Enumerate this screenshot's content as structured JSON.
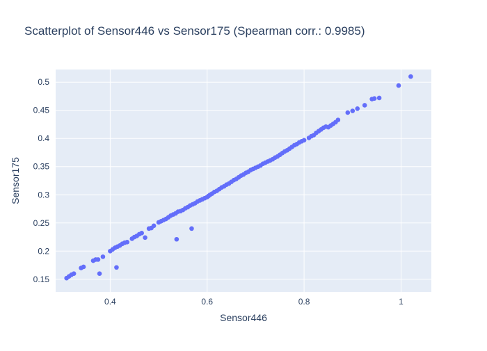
{
  "chart_data": {
    "type": "scatter",
    "title": "Scatterplot of Sensor446 vs Sensor175 (Spearman corr.: 0.9985)",
    "xlabel": "Sensor446",
    "ylabel": "Sensor175",
    "xlim": [
      0.2875,
      1.0625
    ],
    "ylim": [
      0.1275,
      0.5225
    ],
    "x_ticks": [
      0.4,
      0.6,
      0.8,
      1
    ],
    "x_tick_labels": [
      "0.4",
      "0.6",
      "0.8",
      "1"
    ],
    "y_ticks": [
      0.15,
      0.2,
      0.25,
      0.3,
      0.35,
      0.4,
      0.45,
      0.5
    ],
    "y_tick_labels": [
      "0.15",
      "0.2",
      "0.25",
      "0.3",
      "0.35",
      "0.4",
      "0.45",
      "0.5"
    ],
    "grid": true,
    "legend": "none",
    "colors": {
      "plot_bg": "#e5ecf6",
      "grid": "#ffffff",
      "marker": "#636efa",
      "text": "#2a3f5f"
    },
    "series": [
      {
        "points": [
          [
            0.31,
            0.152
          ],
          [
            0.315,
            0.155
          ],
          [
            0.32,
            0.158
          ],
          [
            0.325,
            0.16
          ],
          [
            0.34,
            0.17
          ],
          [
            0.345,
            0.172
          ],
          [
            0.365,
            0.183
          ],
          [
            0.37,
            0.185
          ],
          [
            0.375,
            0.185
          ],
          [
            0.378,
            0.16
          ],
          [
            0.385,
            0.19
          ],
          [
            0.4,
            0.2
          ],
          [
            0.405,
            0.203
          ],
          [
            0.41,
            0.206
          ],
          [
            0.415,
            0.208
          ],
          [
            0.42,
            0.21
          ],
          [
            0.425,
            0.213
          ],
          [
            0.43,
            0.215
          ],
          [
            0.435,
            0.216
          ],
          [
            0.413,
            0.171
          ],
          [
            0.445,
            0.222
          ],
          [
            0.45,
            0.225
          ],
          [
            0.455,
            0.227
          ],
          [
            0.46,
            0.23
          ],
          [
            0.465,
            0.232
          ],
          [
            0.472,
            0.224
          ],
          [
            0.48,
            0.24
          ],
          [
            0.485,
            0.241
          ],
          [
            0.49,
            0.245
          ],
          [
            0.5,
            0.251
          ],
          [
            0.505,
            0.253
          ],
          [
            0.51,
            0.255
          ],
          [
            0.515,
            0.257
          ],
          [
            0.52,
            0.26
          ],
          [
            0.525,
            0.263
          ],
          [
            0.53,
            0.265
          ],
          [
            0.535,
            0.267
          ],
          [
            0.537,
            0.221
          ],
          [
            0.54,
            0.27
          ],
          [
            0.545,
            0.271
          ],
          [
            0.55,
            0.273
          ],
          [
            0.555,
            0.276
          ],
          [
            0.56,
            0.278
          ],
          [
            0.565,
            0.281
          ],
          [
            0.568,
            0.24
          ],
          [
            0.57,
            0.283
          ],
          [
            0.575,
            0.285
          ],
          [
            0.58,
            0.288
          ],
          [
            0.585,
            0.29
          ],
          [
            0.59,
            0.292
          ],
          [
            0.595,
            0.294
          ],
          [
            0.6,
            0.296
          ],
          [
            0.603,
            0.298
          ],
          [
            0.606,
            0.3
          ],
          [
            0.61,
            0.302
          ],
          [
            0.615,
            0.305
          ],
          [
            0.62,
            0.307
          ],
          [
            0.625,
            0.31
          ],
          [
            0.63,
            0.313
          ],
          [
            0.635,
            0.315
          ],
          [
            0.64,
            0.318
          ],
          [
            0.645,
            0.32
          ],
          [
            0.65,
            0.323
          ],
          [
            0.655,
            0.326
          ],
          [
            0.66,
            0.328
          ],
          [
            0.665,
            0.331
          ],
          [
            0.67,
            0.334
          ],
          [
            0.675,
            0.336
          ],
          [
            0.68,
            0.339
          ],
          [
            0.685,
            0.341
          ],
          [
            0.69,
            0.344
          ],
          [
            0.695,
            0.346
          ],
          [
            0.7,
            0.348
          ],
          [
            0.705,
            0.35
          ],
          [
            0.71,
            0.352
          ],
          [
            0.715,
            0.355
          ],
          [
            0.72,
            0.357
          ],
          [
            0.725,
            0.359
          ],
          [
            0.73,
            0.361
          ],
          [
            0.735,
            0.363
          ],
          [
            0.74,
            0.366
          ],
          [
            0.745,
            0.368
          ],
          [
            0.75,
            0.371
          ],
          [
            0.755,
            0.374
          ],
          [
            0.76,
            0.377
          ],
          [
            0.765,
            0.379
          ],
          [
            0.77,
            0.382
          ],
          [
            0.775,
            0.385
          ],
          [
            0.78,
            0.388
          ],
          [
            0.785,
            0.39
          ],
          [
            0.79,
            0.393
          ],
          [
            0.795,
            0.395
          ],
          [
            0.8,
            0.397
          ],
          [
            0.81,
            0.401
          ],
          [
            0.815,
            0.404
          ],
          [
            0.82,
            0.406
          ],
          [
            0.825,
            0.41
          ],
          [
            0.83,
            0.413
          ],
          [
            0.835,
            0.416
          ],
          [
            0.84,
            0.419
          ],
          [
            0.845,
            0.421
          ],
          [
            0.85,
            0.42
          ],
          [
            0.855,
            0.423
          ],
          [
            0.86,
            0.426
          ],
          [
            0.865,
            0.429
          ],
          [
            0.87,
            0.433
          ],
          [
            0.89,
            0.446
          ],
          [
            0.9,
            0.449
          ],
          [
            0.91,
            0.453
          ],
          [
            0.925,
            0.459
          ],
          [
            0.94,
            0.47
          ],
          [
            0.945,
            0.471
          ],
          [
            0.955,
            0.472
          ],
          [
            0.995,
            0.494
          ],
          [
            1.02,
            0.51
          ]
        ]
      }
    ]
  }
}
